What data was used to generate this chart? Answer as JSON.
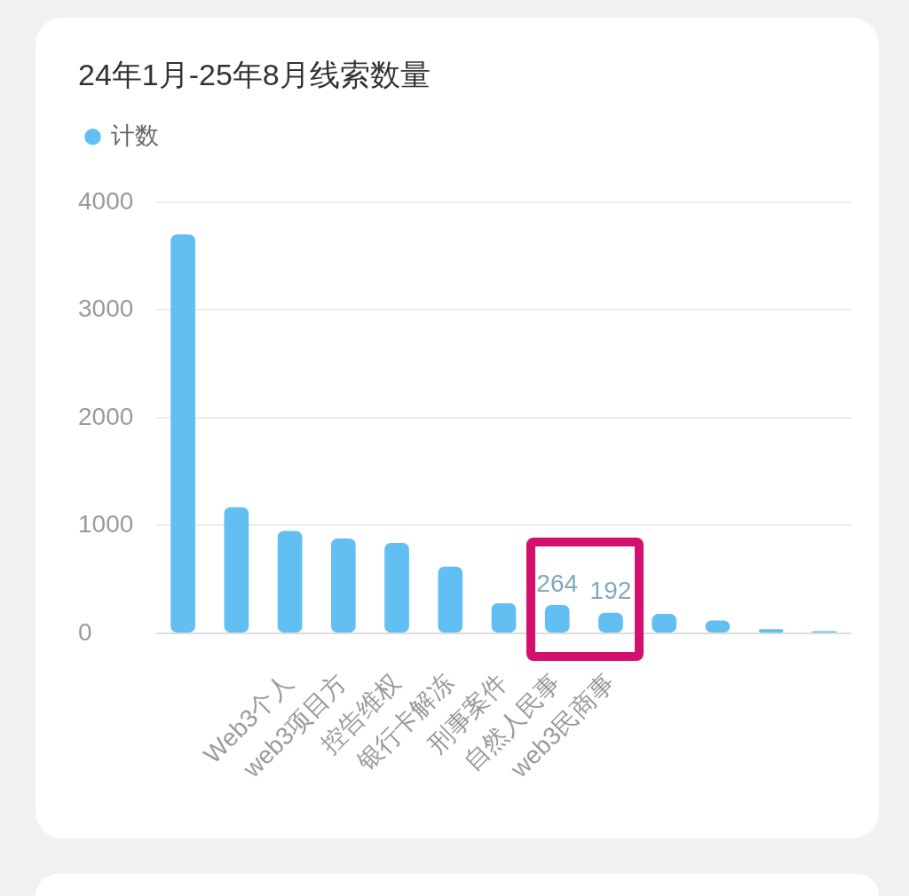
{
  "chart_data": {
    "type": "bar",
    "title": "24年1月-25年8月线索数量",
    "categories": [
      null,
      null,
      "Web3个人",
      "web3项目方",
      "控告维权",
      "银行卡解冻",
      "刑事案件",
      "自然人民事",
      "web3民商事",
      null,
      null,
      null,
      null
    ],
    "series": [
      {
        "name": "计数",
        "color": "#62bff2",
        "values": [
          3700,
          1170,
          950,
          880,
          840,
          620,
          280,
          264,
          192,
          180,
          120,
          40,
          20
        ],
        "value_labels": [
          null,
          null,
          null,
          null,
          null,
          null,
          null,
          "264",
          "192",
          null,
          null,
          null,
          null
        ]
      }
    ],
    "ylim": [
      0,
      4000
    ],
    "yticks": [
      0,
      1000,
      2000,
      3000,
      4000
    ],
    "grid": "y",
    "legend": "top left"
  }
}
